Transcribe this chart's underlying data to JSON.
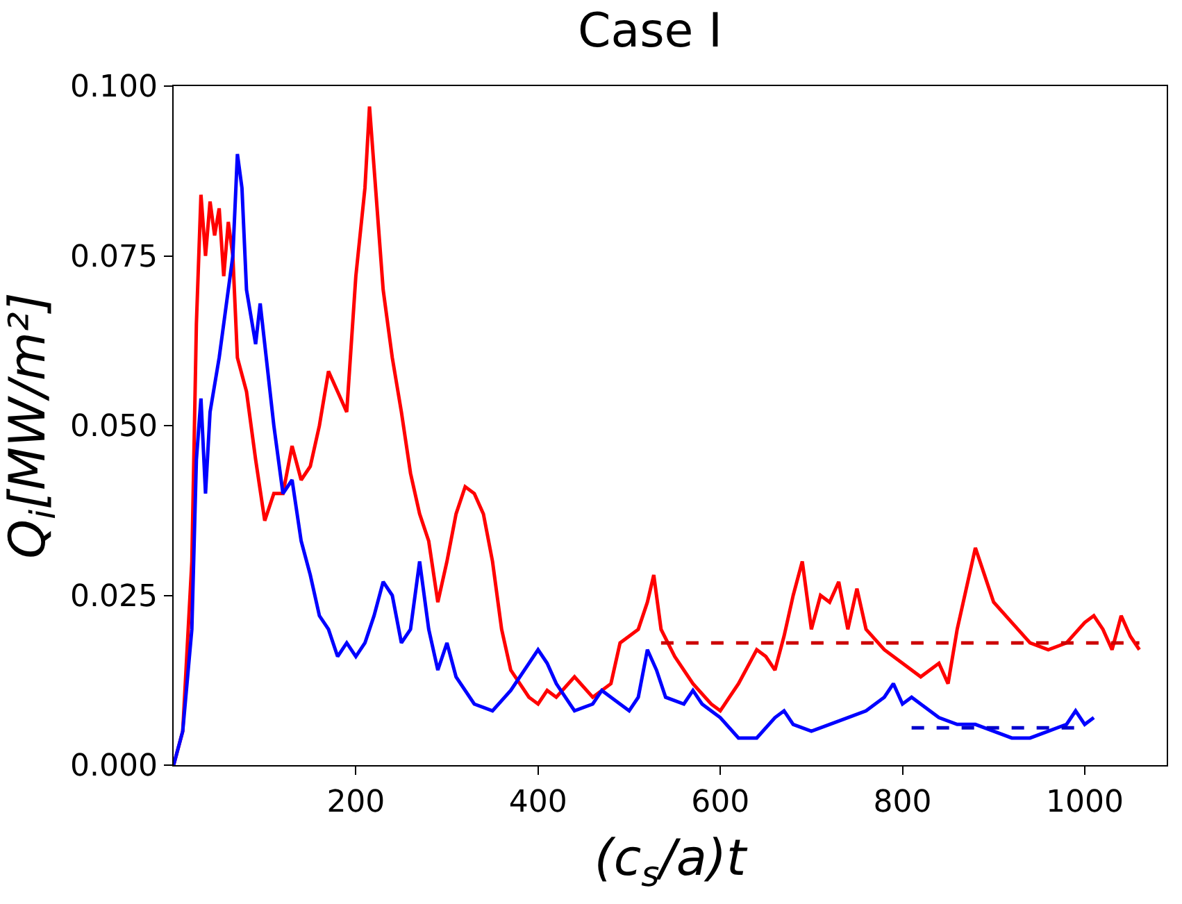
{
  "chart_data": {
    "type": "line",
    "title": "Case I",
    "xlabel": "(c$_{s}$/a)t",
    "ylabel": "Q$_{i}$[MW/m²]",
    "xlim": [
      0,
      1090
    ],
    "xticks": [
      200,
      400,
      600,
      800,
      1000
    ],
    "ylim": [
      0,
      0.1
    ],
    "yticks": [
      {
        "value": 0,
        "label": "0.000"
      },
      {
        "value": 0.025,
        "label": "0.025"
      },
      {
        "value": 0.05,
        "label": "0.050"
      },
      {
        "value": 0.075,
        "label": "0.075"
      },
      {
        "value": 0.1,
        "label": "0.100"
      }
    ],
    "line_style": "solid",
    "marker": "none",
    "series": [
      {
        "color": "#ff0000",
        "x": [
          0,
          10,
          20,
          25,
          30,
          35,
          40,
          45,
          50,
          55,
          60,
          65,
          70,
          80,
          90,
          100,
          110,
          120,
          130,
          140,
          150,
          160,
          170,
          180,
          190,
          200,
          210,
          215,
          220,
          230,
          240,
          250,
          260,
          270,
          280,
          290,
          300,
          310,
          320,
          330,
          340,
          350,
          360,
          370,
          380,
          390,
          400,
          410,
          420,
          440,
          460,
          480,
          490,
          500,
          510,
          520,
          527,
          535,
          550,
          570,
          590,
          600,
          610,
          620,
          640,
          650,
          660,
          670,
          680,
          690,
          700,
          710,
          720,
          730,
          740,
          750,
          760,
          780,
          800,
          820,
          840,
          850,
          860,
          870,
          880,
          890,
          900,
          920,
          940,
          960,
          980,
          1000,
          1010,
          1020,
          1030,
          1040,
          1050,
          1060
        ],
        "values": [
          0,
          0.005,
          0.03,
          0.065,
          0.084,
          0.075,
          0.083,
          0.078,
          0.082,
          0.072,
          0.08,
          0.075,
          0.06,
          0.055,
          0.045,
          0.036,
          0.04,
          0.04,
          0.047,
          0.042,
          0.044,
          0.05,
          0.058,
          0.055,
          0.052,
          0.072,
          0.085,
          0.097,
          0.088,
          0.07,
          0.06,
          0.052,
          0.043,
          0.037,
          0.033,
          0.024,
          0.03,
          0.037,
          0.041,
          0.04,
          0.037,
          0.03,
          0.02,
          0.014,
          0.012,
          0.01,
          0.009,
          0.011,
          0.01,
          0.013,
          0.01,
          0.012,
          0.018,
          0.019,
          0.02,
          0.024,
          0.028,
          0.02,
          0.016,
          0.012,
          0.009,
          0.008,
          0.01,
          0.012,
          0.017,
          0.016,
          0.014,
          0.019,
          0.025,
          0.03,
          0.02,
          0.025,
          0.024,
          0.027,
          0.02,
          0.026,
          0.02,
          0.017,
          0.015,
          0.013,
          0.015,
          0.012,
          0.02,
          0.026,
          0.032,
          0.028,
          0.024,
          0.021,
          0.018,
          0.017,
          0.018,
          0.021,
          0.022,
          0.02,
          0.017,
          0.022,
          0.019,
          0.017
        ]
      },
      {
        "color": "#0000ff",
        "x": [
          0,
          10,
          20,
          25,
          30,
          35,
          40,
          50,
          60,
          65,
          70,
          75,
          80,
          90,
          95,
          100,
          110,
          120,
          130,
          140,
          150,
          160,
          170,
          180,
          190,
          200,
          210,
          220,
          230,
          240,
          250,
          260,
          270,
          280,
          290,
          300,
          310,
          330,
          350,
          370,
          390,
          400,
          410,
          420,
          440,
          460,
          470,
          480,
          500,
          510,
          520,
          530,
          540,
          560,
          570,
          580,
          600,
          620,
          640,
          660,
          670,
          680,
          700,
          720,
          740,
          760,
          780,
          790,
          800,
          810,
          820,
          840,
          860,
          880,
          900,
          920,
          940,
          960,
          980,
          990,
          1000,
          1010
        ],
        "values": [
          0,
          0.005,
          0.02,
          0.045,
          0.054,
          0.04,
          0.052,
          0.06,
          0.07,
          0.075,
          0.09,
          0.085,
          0.07,
          0.062,
          0.068,
          0.062,
          0.05,
          0.04,
          0.042,
          0.033,
          0.028,
          0.022,
          0.02,
          0.016,
          0.018,
          0.016,
          0.018,
          0.022,
          0.027,
          0.025,
          0.018,
          0.02,
          0.03,
          0.02,
          0.014,
          0.018,
          0.013,
          0.009,
          0.008,
          0.011,
          0.015,
          0.017,
          0.015,
          0.012,
          0.008,
          0.009,
          0.011,
          0.01,
          0.008,
          0.01,
          0.017,
          0.014,
          0.01,
          0.009,
          0.011,
          0.009,
          0.007,
          0.004,
          0.004,
          0.007,
          0.008,
          0.006,
          0.005,
          0.006,
          0.007,
          0.008,
          0.01,
          0.012,
          0.009,
          0.01,
          0.009,
          0.007,
          0.006,
          0.006,
          0.005,
          0.004,
          0.004,
          0.005,
          0.006,
          0.008,
          0.006,
          0.007
        ]
      },
      {
        "color": "#cc0000",
        "line_style": "dashed",
        "x": [
          535,
          1060
        ],
        "values": [
          0.018,
          0.018
        ]
      },
      {
        "color": "#0000cc",
        "line_style": "dashed",
        "x": [
          810,
          990
        ],
        "values": [
          0.0055,
          0.0055
        ]
      }
    ]
  }
}
